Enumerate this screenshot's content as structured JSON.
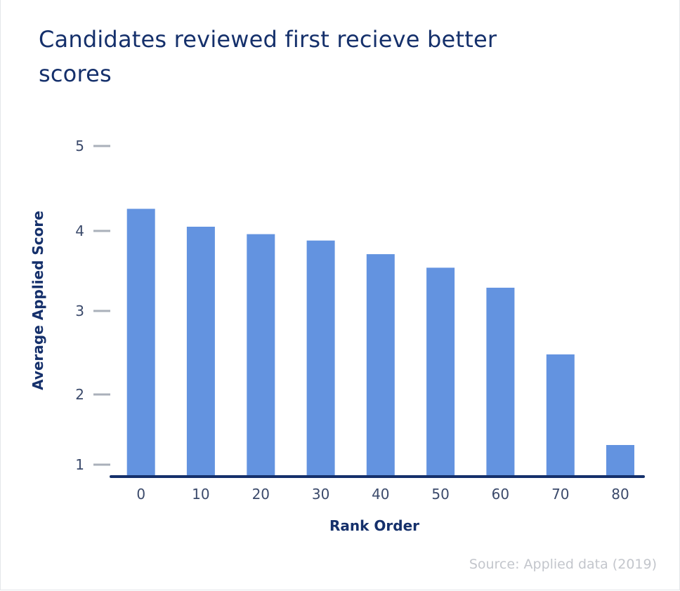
{
  "chart_data": {
    "type": "bar",
    "title": "Candidates reviewed first recieve better scores",
    "xlabel": "Rank Order",
    "ylabel": "Average Applied Score",
    "categories": [
      "0",
      "10",
      "20",
      "30",
      "40",
      "50",
      "60",
      "70",
      "80"
    ],
    "values": [
      4.26,
      4.05,
      3.96,
      3.88,
      3.71,
      3.54,
      3.29,
      2.48,
      1.28
    ],
    "y_ticks": [
      "1",
      "2",
      "3",
      "4",
      "5"
    ],
    "ylim": [
      1,
      5
    ],
    "grid": false,
    "legend": "none",
    "colors": {
      "bar": "#6393e0",
      "axis": "#15306b",
      "tick_mark": "#aab0ba",
      "text": "#15306b"
    }
  },
  "source": "Source: Applied data (2019)"
}
